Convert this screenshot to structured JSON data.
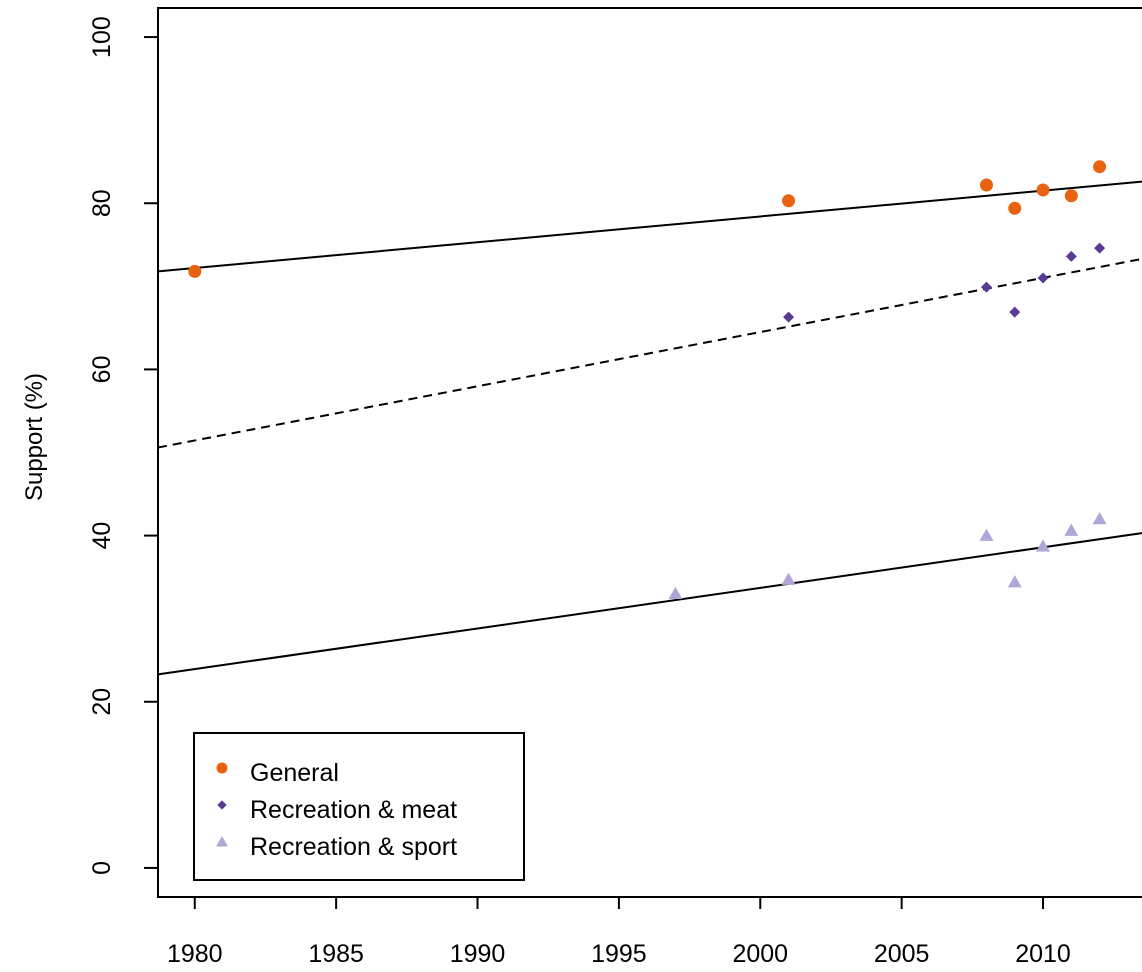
{
  "chart_data": {
    "type": "scatter",
    "title": "",
    "xlabel": "",
    "ylabel": "Support (%)",
    "xlim": [
      1978.7,
      2013.5
    ],
    "ylim": [
      -3.5,
      103.5
    ],
    "x_ticks": [
      "1980",
      "1985",
      "1990",
      "1995",
      "2000",
      "2005",
      "2010"
    ],
    "y_ticks": [
      "0",
      "20",
      "40",
      "60",
      "80",
      "100"
    ],
    "grid": false,
    "legend_position": "bottom-left",
    "series": [
      {
        "name": "General",
        "marker": "circle",
        "color": "#E8620F",
        "points": [
          [
            1980,
            71.8
          ],
          [
            2001,
            80.3
          ],
          [
            2008,
            82.2
          ],
          [
            2009,
            79.4
          ],
          [
            2010,
            81.6
          ],
          [
            2011,
            80.9
          ],
          [
            2012,
            84.4
          ]
        ],
        "trend": {
          "style": "solid",
          "x": [
            1978.7,
            2013.5
          ],
          "y": [
            71.8,
            82.6
          ]
        }
      },
      {
        "name": "Recreation & meat",
        "marker": "diamond",
        "color": "#5B3A96",
        "points": [
          [
            2001,
            66.3
          ],
          [
            2008,
            69.9
          ],
          [
            2009,
            66.9
          ],
          [
            2010,
            71.0
          ],
          [
            2011,
            73.6
          ],
          [
            2012,
            74.6
          ]
        ],
        "trend": {
          "style": "dashed",
          "x": [
            1978.7,
            2013.5
          ],
          "y": [
            50.6,
            73.3
          ]
        }
      },
      {
        "name": "Recreation & sport",
        "marker": "triangle",
        "color": "#B2A6D6",
        "points": [
          [
            1997,
            33.0
          ],
          [
            2001,
            34.7
          ],
          [
            2008,
            40.0
          ],
          [
            2009,
            34.4
          ],
          [
            2010,
            38.7
          ],
          [
            2011,
            40.6
          ],
          [
            2012,
            42.0
          ]
        ],
        "trend": {
          "style": "solid",
          "x": [
            1978.7,
            2013.5
          ],
          "y": [
            23.3,
            40.3
          ]
        }
      }
    ]
  }
}
